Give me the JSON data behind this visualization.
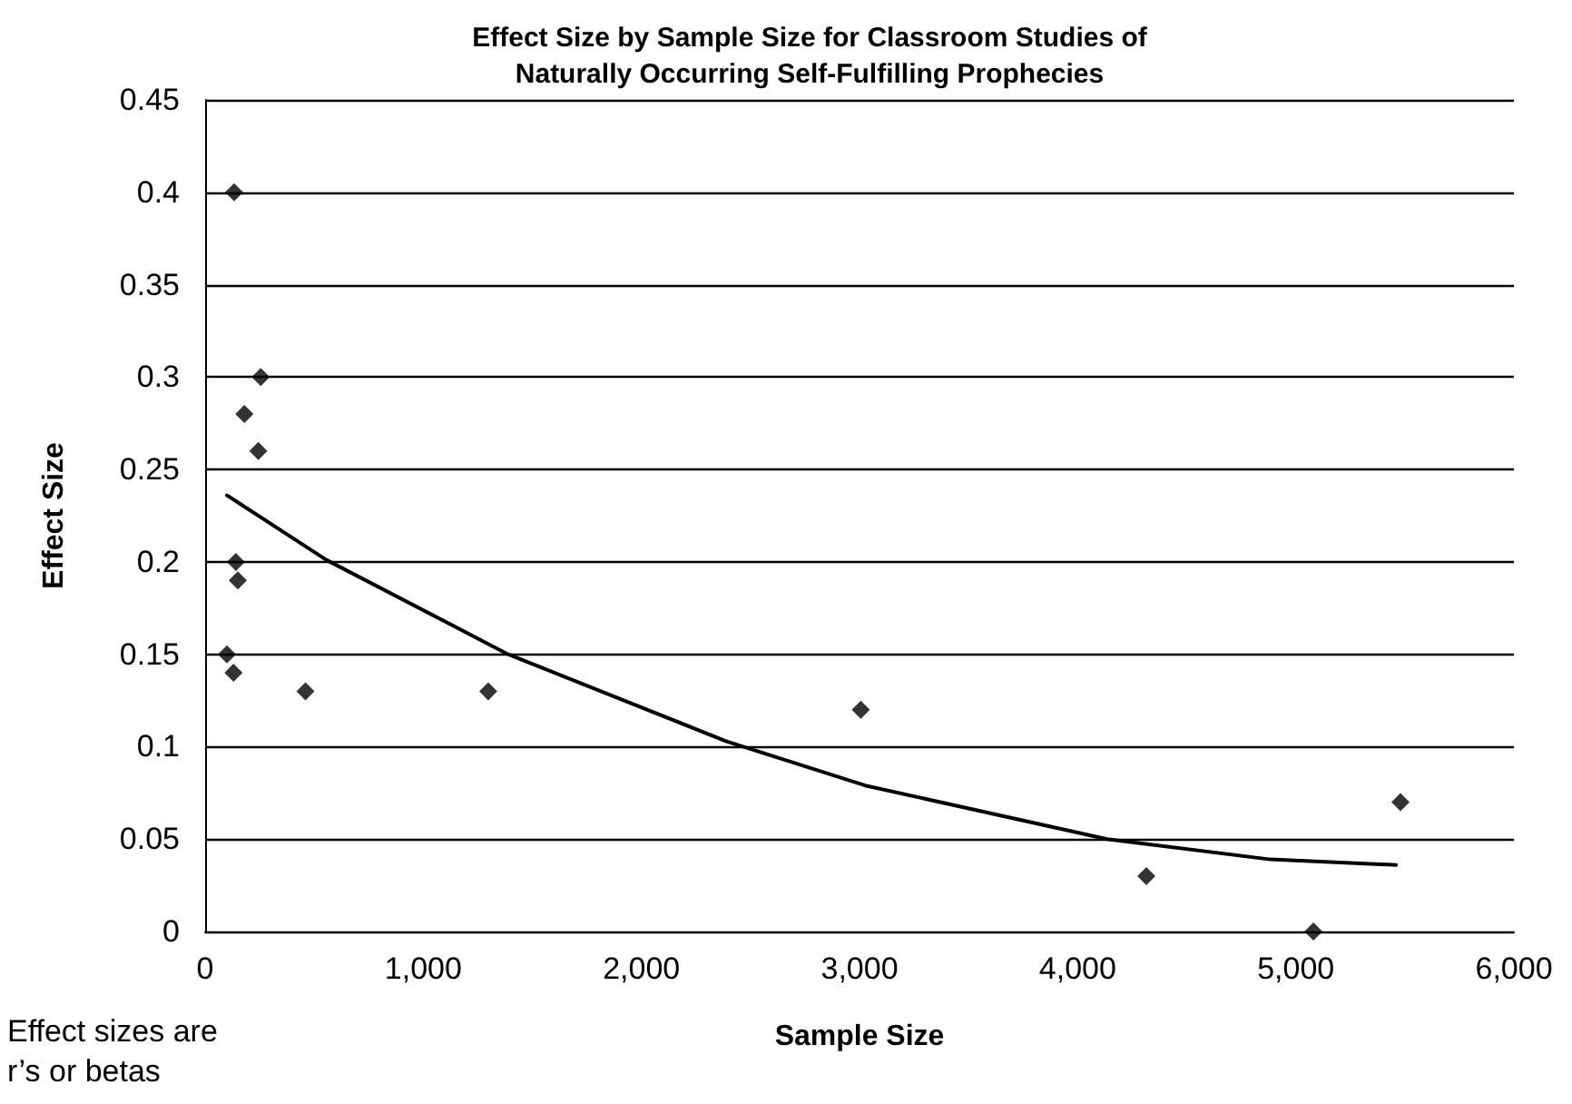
{
  "chart_data": {
    "type": "scatter",
    "title": "Effect Size by Sample Size for Classroom Studies of\nNaturally Occurring Self-Fulfilling Prophecies",
    "xlabel": "Sample Size",
    "ylabel": "Effect Size",
    "annotations": [
      "Effect sizes are\nr’s or betas"
    ],
    "series": [
      {
        "color": "#000000",
        "x": [
          133,
          255,
          180,
          244,
          141,
          150,
          100,
          130,
          460,
          1298,
          3006,
          4315,
          5081,
          5480
        ],
        "values": [
          0.4,
          0.3,
          0.28,
          0.26,
          0.2,
          0.19,
          0.15,
          0.14,
          0.13,
          0.13,
          0.12,
          0.03,
          0,
          0.07
        ]
      },
      {
        "type": "line",
        "color": "#000000",
        "marker": "none",
        "x": [
          100,
          557,
          1389,
          2388,
          3026,
          4135,
          4884,
          5460
        ],
        "values": [
          0.236,
          0.201,
          0.15,
          0.103,
          0.079,
          0.05,
          0.039,
          0.036
        ]
      }
    ],
    "xlim": [
      0,
      6000
    ],
    "xticks": [
      {
        "value": 0,
        "label": "0"
      },
      {
        "value": 1000,
        "label": "1,000"
      },
      {
        "value": 2000,
        "label": "2,000"
      },
      {
        "value": 3000,
        "label": "3,000"
      },
      {
        "value": 4000,
        "label": "4,000"
      },
      {
        "value": 5000,
        "label": "5,000"
      },
      {
        "value": 6000,
        "label": "6,000"
      }
    ],
    "ylim": [
      0,
      0.45
    ],
    "yticks": [
      0,
      0.05,
      0.1,
      0.15,
      0.2,
      0.25,
      0.3,
      0.35,
      0.4,
      0.45
    ],
    "grid": "y",
    "marker": "diamond"
  }
}
